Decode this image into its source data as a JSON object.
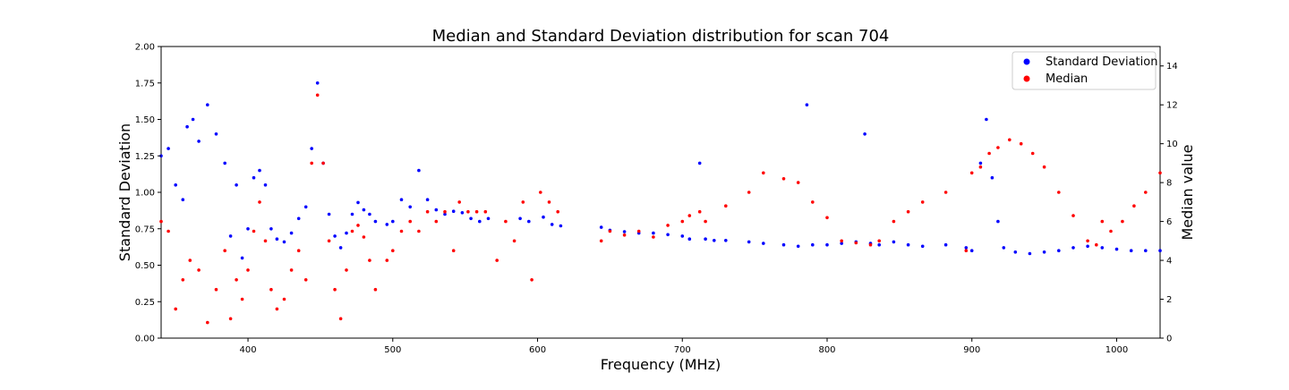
{
  "chart_data": {
    "type": "scatter",
    "title": "Median and Standard Deviation distribution for scan 704",
    "xlabel": "Frequency (MHz)",
    "ylabel_left": "Standard Deviation",
    "ylabel_right": "Median value",
    "xlim": [
      340,
      1030
    ],
    "ylim_left": [
      0,
      2.0
    ],
    "ylim_right": [
      0,
      15
    ],
    "x_ticks": [
      400,
      500,
      600,
      700,
      800,
      900,
      1000
    ],
    "y_ticks_left": [
      "0.00",
      "0.25",
      "0.50",
      "0.75",
      "1.00",
      "1.25",
      "1.50",
      "1.75",
      "2.00"
    ],
    "y_ticks_right": [
      "0",
      "2",
      "4",
      "6",
      "8",
      "10",
      "12",
      "14"
    ],
    "legend": {
      "position": "top-right",
      "entries": [
        "Standard Deviation",
        "Median"
      ]
    },
    "grid": false,
    "series": [
      {
        "name": "Standard Deviation",
        "axis": "left",
        "color": "#0000ff",
        "points": [
          [
            340,
            1.25
          ],
          [
            345,
            1.3
          ],
          [
            350,
            1.05
          ],
          [
            355,
            0.95
          ],
          [
            358,
            1.45
          ],
          [
            362,
            1.5
          ],
          [
            366,
            1.35
          ],
          [
            372,
            1.6
          ],
          [
            378,
            1.4
          ],
          [
            384,
            1.2
          ],
          [
            388,
            0.7
          ],
          [
            392,
            1.05
          ],
          [
            396,
            0.55
          ],
          [
            400,
            0.75
          ],
          [
            404,
            1.1
          ],
          [
            408,
            1.15
          ],
          [
            412,
            1.05
          ],
          [
            416,
            0.75
          ],
          [
            420,
            0.68
          ],
          [
            425,
            0.66
          ],
          [
            430,
            0.72
          ],
          [
            435,
            0.82
          ],
          [
            440,
            0.9
          ],
          [
            444,
            1.3
          ],
          [
            448,
            1.75
          ],
          [
            452,
            1.2
          ],
          [
            456,
            0.85
          ],
          [
            460,
            0.7
          ],
          [
            464,
            0.62
          ],
          [
            468,
            0.72
          ],
          [
            472,
            0.85
          ],
          [
            476,
            0.93
          ],
          [
            480,
            0.88
          ],
          [
            484,
            0.85
          ],
          [
            488,
            0.8
          ],
          [
            496,
            0.78
          ],
          [
            500,
            0.8
          ],
          [
            506,
            0.95
          ],
          [
            512,
            0.9
          ],
          [
            518,
            1.15
          ],
          [
            524,
            0.95
          ],
          [
            530,
            0.88
          ],
          [
            536,
            0.85
          ],
          [
            542,
            0.87
          ],
          [
            548,
            0.86
          ],
          [
            554,
            0.82
          ],
          [
            560,
            0.8
          ],
          [
            566,
            0.82
          ],
          [
            588,
            0.82
          ],
          [
            594,
            0.8
          ],
          [
            604,
            0.83
          ],
          [
            610,
            0.78
          ],
          [
            616,
            0.77
          ],
          [
            644,
            0.76
          ],
          [
            650,
            0.74
          ],
          [
            660,
            0.73
          ],
          [
            670,
            0.72
          ],
          [
            680,
            0.72
          ],
          [
            690,
            0.71
          ],
          [
            700,
            0.7
          ],
          [
            705,
            0.68
          ],
          [
            712,
            1.2
          ],
          [
            716,
            0.68
          ],
          [
            722,
            0.67
          ],
          [
            730,
            0.67
          ],
          [
            746,
            0.66
          ],
          [
            756,
            0.65
          ],
          [
            770,
            0.64
          ],
          [
            780,
            0.63
          ],
          [
            786,
            1.6
          ],
          [
            790,
            0.64
          ],
          [
            800,
            0.64
          ],
          [
            810,
            0.65
          ],
          [
            820,
            0.66
          ],
          [
            826,
            1.4
          ],
          [
            830,
            0.65
          ],
          [
            836,
            0.64
          ],
          [
            846,
            0.66
          ],
          [
            856,
            0.64
          ],
          [
            866,
            0.63
          ],
          [
            882,
            0.64
          ],
          [
            896,
            0.62
          ],
          [
            900,
            0.6
          ],
          [
            906,
            1.2
          ],
          [
            910,
            1.5
          ],
          [
            914,
            1.1
          ],
          [
            918,
            0.8
          ],
          [
            922,
            0.62
          ],
          [
            930,
            0.59
          ],
          [
            940,
            0.58
          ],
          [
            950,
            0.59
          ],
          [
            960,
            0.6
          ],
          [
            970,
            0.62
          ],
          [
            980,
            0.63
          ],
          [
            990,
            0.62
          ],
          [
            1000,
            0.61
          ],
          [
            1010,
            0.6
          ],
          [
            1020,
            0.6
          ],
          [
            1030,
            0.6
          ]
        ]
      },
      {
        "name": "Median",
        "axis": "right",
        "color": "#ff0000",
        "points": [
          [
            340,
            6.0
          ],
          [
            345,
            5.5
          ],
          [
            350,
            1.5
          ],
          [
            355,
            3.0
          ],
          [
            360,
            4.0
          ],
          [
            366,
            3.5
          ],
          [
            372,
            0.8
          ],
          [
            378,
            2.5
          ],
          [
            384,
            4.5
          ],
          [
            388,
            1.0
          ],
          [
            392,
            3.0
          ],
          [
            396,
            2.0
          ],
          [
            400,
            3.5
          ],
          [
            404,
            5.5
          ],
          [
            408,
            7.0
          ],
          [
            412,
            5.0
          ],
          [
            416,
            2.5
          ],
          [
            420,
            1.5
          ],
          [
            425,
            2.0
          ],
          [
            430,
            3.5
          ],
          [
            435,
            4.5
          ],
          [
            440,
            3.0
          ],
          [
            444,
            9.0
          ],
          [
            448,
            12.5
          ],
          [
            452,
            9.0
          ],
          [
            456,
            5.0
          ],
          [
            460,
            2.5
          ],
          [
            464,
            1.0
          ],
          [
            468,
            3.5
          ],
          [
            472,
            5.5
          ],
          [
            476,
            5.8
          ],
          [
            480,
            5.2
          ],
          [
            484,
            4.0
          ],
          [
            488,
            2.5
          ],
          [
            496,
            4.0
          ],
          [
            500,
            4.5
          ],
          [
            506,
            5.5
          ],
          [
            512,
            6.0
          ],
          [
            518,
            5.5
          ],
          [
            524,
            6.5
          ],
          [
            530,
            6.0
          ],
          [
            536,
            6.5
          ],
          [
            542,
            4.5
          ],
          [
            546,
            7.0
          ],
          [
            552,
            6.5
          ],
          [
            558,
            6.5
          ],
          [
            564,
            6.5
          ],
          [
            572,
            4.0
          ],
          [
            578,
            6.0
          ],
          [
            584,
            5.0
          ],
          [
            590,
            7.0
          ],
          [
            596,
            3.0
          ],
          [
            602,
            7.5
          ],
          [
            608,
            7.0
          ],
          [
            614,
            6.5
          ],
          [
            644,
            5.0
          ],
          [
            650,
            5.5
          ],
          [
            660,
            5.3
          ],
          [
            670,
            5.5
          ],
          [
            680,
            5.2
          ],
          [
            690,
            5.8
          ],
          [
            700,
            6.0
          ],
          [
            705,
            6.3
          ],
          [
            712,
            6.5
          ],
          [
            716,
            6.0
          ],
          [
            730,
            6.8
          ],
          [
            746,
            7.5
          ],
          [
            756,
            8.5
          ],
          [
            770,
            8.2
          ],
          [
            780,
            8.0
          ],
          [
            790,
            7.0
          ],
          [
            800,
            6.2
          ],
          [
            810,
            5.0
          ],
          [
            820,
            4.9
          ],
          [
            830,
            4.8
          ],
          [
            836,
            5.0
          ],
          [
            846,
            6.0
          ],
          [
            856,
            6.5
          ],
          [
            866,
            7.0
          ],
          [
            882,
            7.5
          ],
          [
            896,
            4.5
          ],
          [
            900,
            8.5
          ],
          [
            906,
            8.8
          ],
          [
            912,
            9.5
          ],
          [
            918,
            9.8
          ],
          [
            926,
            10.2
          ],
          [
            934,
            10.0
          ],
          [
            942,
            9.5
          ],
          [
            950,
            8.8
          ],
          [
            960,
            7.5
          ],
          [
            970,
            6.3
          ],
          [
            980,
            5.0
          ],
          [
            986,
            4.8
          ],
          [
            990,
            6.0
          ],
          [
            996,
            5.5
          ],
          [
            1004,
            6.0
          ],
          [
            1012,
            6.8
          ],
          [
            1020,
            7.5
          ],
          [
            1030,
            8.5
          ]
        ]
      }
    ]
  }
}
